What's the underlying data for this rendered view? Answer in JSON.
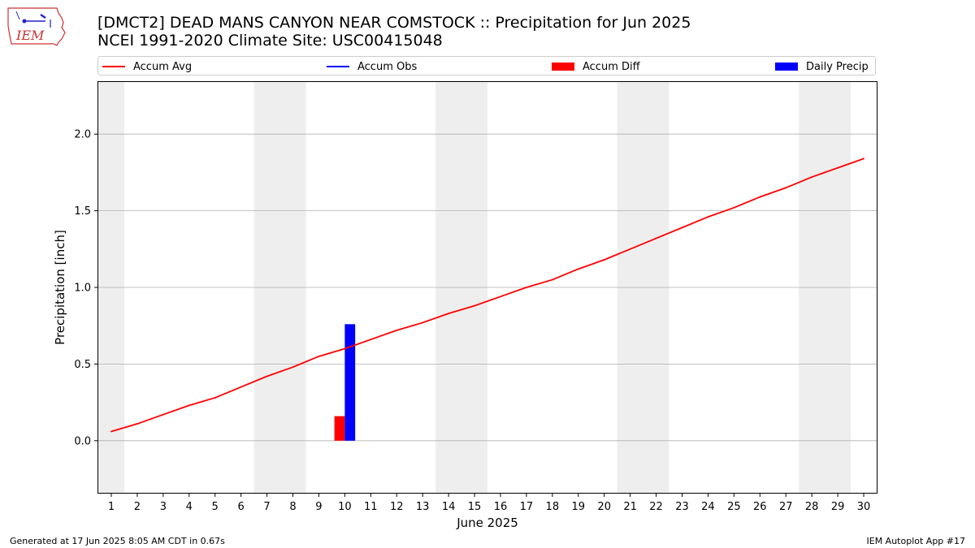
{
  "logo": {
    "text": "IEM"
  },
  "header": {
    "title": "[DMCT2] DEAD MANS CANYON NEAR COMSTOCK :: Precipitation for Jun 2025",
    "subtitle": "NCEI 1991-2020 Climate Site: USC00415048"
  },
  "legend": {
    "accum_avg": "Accum Avg",
    "accum_obs": "Accum Obs",
    "accum_diff": "Accum Diff",
    "daily_precip": "Daily Precip"
  },
  "colors": {
    "avg": "#ff0000",
    "obs": "#0000ff",
    "diff": "#ff0000",
    "daily": "#0000ff",
    "weekend": "#eeeeee",
    "grid": "#b0b0b0"
  },
  "chart_data": {
    "type": "line",
    "title": "[DMCT2] DEAD MANS CANYON NEAR COMSTOCK :: Precipitation for Jun 2025",
    "xlabel": "June 2025",
    "ylabel": "Precipitation [inch]",
    "xlim": [
      0.5,
      30.5
    ],
    "ylim": [
      -0.34,
      2.34
    ],
    "yticks": [
      0.0,
      0.5,
      1.0,
      1.5,
      2.0
    ],
    "ytick_labels": [
      "0.0",
      "0.5",
      "1.0",
      "1.5",
      "2.0"
    ],
    "days": [
      1,
      2,
      3,
      4,
      5,
      6,
      7,
      8,
      9,
      10,
      11,
      12,
      13,
      14,
      15,
      16,
      17,
      18,
      19,
      20,
      21,
      22,
      23,
      24,
      25,
      26,
      27,
      28,
      29,
      30
    ],
    "shaded_day_ranges": [
      [
        0.5,
        1.5
      ],
      [
        6.5,
        8.5
      ],
      [
        13.5,
        15.5
      ],
      [
        20.5,
        22.5
      ],
      [
        27.5,
        29.5
      ]
    ],
    "series": [
      {
        "name": "Accum Avg",
        "type": "line",
        "x": [
          1,
          2,
          3,
          4,
          5,
          6,
          7,
          8,
          9,
          10,
          11,
          12,
          13,
          14,
          15,
          16,
          17,
          18,
          19,
          20,
          21,
          22,
          23,
          24,
          25,
          26,
          27,
          28,
          29,
          30
        ],
        "values": [
          0.06,
          0.11,
          0.17,
          0.23,
          0.28,
          0.35,
          0.42,
          0.48,
          0.55,
          0.6,
          0.66,
          0.72,
          0.77,
          0.83,
          0.88,
          0.94,
          1.0,
          1.05,
          1.12,
          1.18,
          1.25,
          1.32,
          1.39,
          1.46,
          1.52,
          1.59,
          1.65,
          1.72,
          1.78,
          1.84
        ]
      },
      {
        "name": "Accum Diff",
        "type": "bar",
        "x": [
          10
        ],
        "values": [
          0.16
        ]
      },
      {
        "name": "Daily Precip",
        "type": "bar",
        "x": [
          10
        ],
        "values": [
          0.76
        ]
      }
    ]
  },
  "footer": {
    "generated": "Generated at 17 Jun 2025 8:05 AM CDT in 0.67s",
    "app": "IEM Autoplot App #17"
  }
}
